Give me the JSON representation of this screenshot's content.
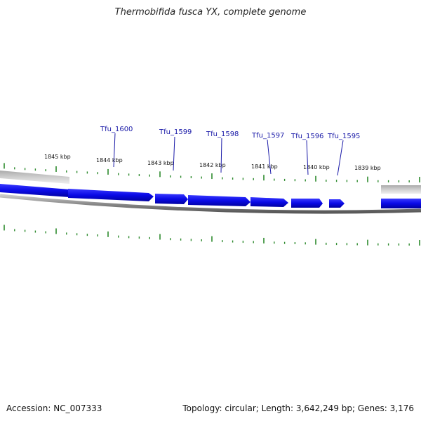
{
  "title": "Thermobifida fusca YX, complete genome",
  "footer": {
    "accession": "Accession: NC_007333",
    "summary": "Topology: circular; Length: 3,642,249 bp; Genes: 3,176"
  },
  "position_labels": [
    "1845 kbp",
    "1844 kbp",
    "1843 kbp",
    "1842 kbp",
    "1841 kbp",
    "1840 kbp",
    "1839 kbp"
  ],
  "genes": [
    {
      "name": "Tfu_1600"
    },
    {
      "name": "Tfu_1599"
    },
    {
      "name": "Tfu_1598"
    },
    {
      "name": "Tfu_1597"
    },
    {
      "name": "Tfu_1596"
    },
    {
      "name": "Tfu_1595"
    }
  ],
  "colors": {
    "gene_fill": "#0a0ae6",
    "backbone": "#777777",
    "tick": "#2d8a2d",
    "gene_label": "#1a1aa8"
  }
}
